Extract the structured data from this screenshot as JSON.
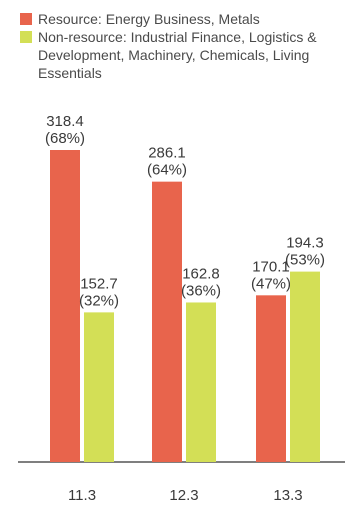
{
  "legend": [
    {
      "label": "Resource: Energy Business, Metals",
      "color": "#e8644c"
    },
    {
      "label": "Non-resource: Industrial Finance, Logistics & Development, Machinery, Chemicals, Living Essentials",
      "color": "#d3df56"
    }
  ],
  "chart_data": {
    "type": "bar",
    "title": "",
    "xlabel": "",
    "ylabel": "",
    "categories": [
      "11.3",
      "12.3",
      "13.3"
    ],
    "series": [
      {
        "name": "Resource: Energy Business, Metals",
        "color": "#e8644c",
        "values": [
          318.4,
          286.1,
          170.1
        ],
        "shares": [
          "(68%)",
          "(64%)",
          "(47%)"
        ]
      },
      {
        "name": "Non-resource: Industrial Finance, Logistics & Development, Machinery, Chemicals, Living Essentials",
        "color": "#d3df56",
        "values": [
          152.7,
          162.8,
          194.3
        ],
        "shares": [
          "(32%)",
          "(36%)",
          "(53%)"
        ]
      }
    ],
    "ylim": [
      0,
      318.4
    ],
    "grid": false,
    "legend_position": "top-left"
  }
}
